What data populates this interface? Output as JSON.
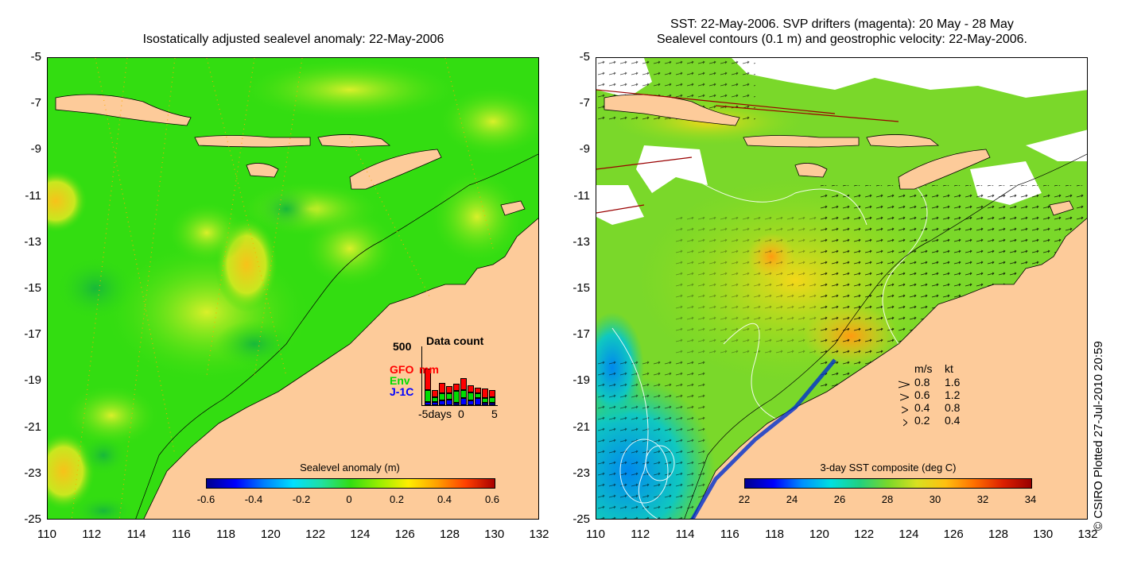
{
  "left_panel": {
    "title": "Isostatically adjusted sealevel anomaly: 22-May-2006",
    "colorbar": {
      "title": "Sealevel anomaly (m)",
      "ticks": [
        "-0.6",
        "-0.4",
        "-0.2",
        "0",
        "0.2",
        "0.4",
        "0.6"
      ]
    },
    "data_count": {
      "title": "Data count",
      "max_label": "500",
      "x_labels": [
        "-5days",
        "0",
        "5"
      ],
      "series": [
        {
          "name": "GFO",
          "color": "#ff0000",
          "values": [
            180,
            60,
            90,
            60,
            60,
            100,
            60,
            50,
            80,
            60
          ]
        },
        {
          "name": "Env",
          "color": "#00dd00",
          "values": [
            100,
            40,
            60,
            50,
            100,
            70,
            70,
            40,
            40,
            50
          ]
        },
        {
          "name": "J-1C",
          "color": "#0000ff",
          "values": [
            30,
            30,
            40,
            50,
            20,
            60,
            40,
            60,
            20,
            20
          ]
        }
      ],
      "mm_label": "mm"
    }
  },
  "right_panel": {
    "title_line1": "SST: 22-May-2006. SVP drifters (magenta): 20 May - 28 May",
    "title_line2": "Sealevel contours (0.1 m) and geostrophic velocity: 22-May-2006.",
    "colorbar": {
      "title": "3-day SST composite (deg C)",
      "ticks": [
        "22",
        "24",
        "26",
        "28",
        "30",
        "32",
        "34"
      ]
    },
    "velocity_legend": {
      "header_ms": "m/s",
      "header_kt": "kt",
      "rows": [
        {
          "ms": "0.8",
          "kt": "1.6"
        },
        {
          "ms": "0.6",
          "kt": "1.2"
        },
        {
          "ms": "0.4",
          "kt": "0.8"
        },
        {
          "ms": "0.2",
          "kt": "0.4"
        }
      ]
    }
  },
  "axes": {
    "y_ticks": [
      "-5",
      "-7",
      "-9",
      "-11",
      "-13",
      "-15",
      "-17",
      "-19",
      "-21",
      "-23",
      "-25"
    ],
    "x_ticks": [
      "110",
      "112",
      "114",
      "116",
      "118",
      "120",
      "122",
      "124",
      "126",
      "128",
      "130",
      "132"
    ]
  },
  "credit": "© CSIRO Plotted 27-Jul-2010 20:59",
  "colors": {
    "land": "#fdcb9a",
    "ocean_green": "#33dd11",
    "ocean_yellow": "#bbee22"
  }
}
